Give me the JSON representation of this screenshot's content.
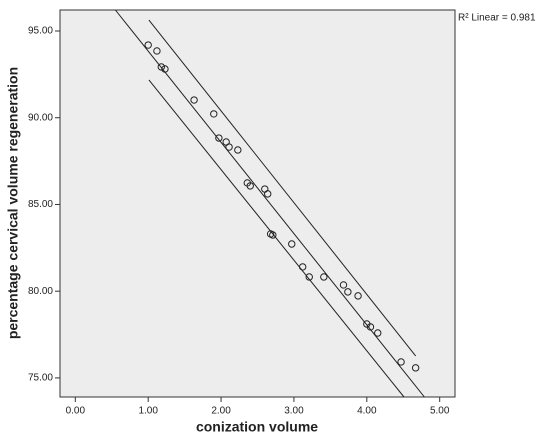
{
  "chart_data": {
    "type": "scatter",
    "x_label": "conization volume",
    "y_label": "percentage cervical volume regeneration",
    "annotation": "R² Linear = 0.981",
    "xlim": [
      -0.21,
      5.21
    ],
    "ylim": [
      73.9,
      96.21
    ],
    "xticks": [
      {
        "value": 0,
        "label": "0.00"
      },
      {
        "value": 1,
        "label": "1.00"
      },
      {
        "value": 2,
        "label": "2.00"
      },
      {
        "value": 3,
        "label": "3.00"
      },
      {
        "value": 4,
        "label": "4.00"
      },
      {
        "value": 5,
        "label": "5.00"
      }
    ],
    "yticks": [
      {
        "value": 75,
        "label": "75.00"
      },
      {
        "value": 80,
        "label": "80.00"
      },
      {
        "value": 85,
        "label": "85.00"
      },
      {
        "value": 90,
        "label": "90.00"
      },
      {
        "value": 95,
        "label": "95.00"
      }
    ],
    "x": [
      1.0,
      1.12,
      1.18,
      1.23,
      1.63,
      1.9,
      1.97,
      2.07,
      2.11,
      2.23,
      2.36,
      2.4,
      2.6,
      2.64,
      2.68,
      2.71,
      2.97,
      3.12,
      3.21,
      3.41,
      3.68,
      3.74,
      3.88,
      4.0,
      4.05,
      4.15,
      4.47,
      4.67
    ],
    "values": [
      94.19,
      93.85,
      92.93,
      92.81,
      91.02,
      90.22,
      88.83,
      88.6,
      88.31,
      88.14,
      86.24,
      86.07,
      85.89,
      85.61,
      83.3,
      83.24,
      82.72,
      81.4,
      80.82,
      80.82,
      80.36,
      79.96,
      79.73,
      78.11,
      77.94,
      77.59,
      75.92,
      75.58
    ],
    "lines": [
      {
        "x": [
          0.55,
          4.79
        ],
        "y": [
          96.21,
          73.9
        ]
      },
      {
        "x": [
          1.01,
          4.67
        ],
        "y": [
          95.63,
          76.27
        ]
      },
      {
        "x": [
          1.01,
          4.51
        ],
        "y": [
          92.18,
          73.9
        ]
      }
    ],
    "plot_background": "#ededed",
    "marker_color": "#222222"
  }
}
